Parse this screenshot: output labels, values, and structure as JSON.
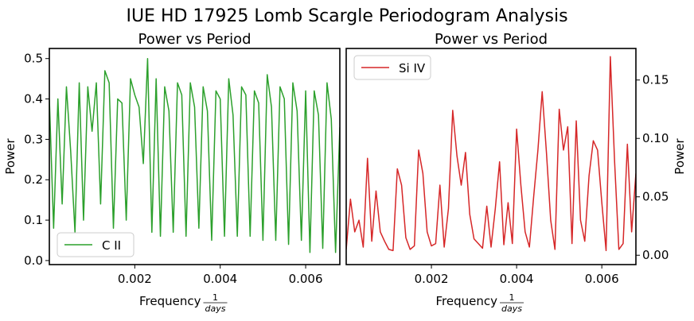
{
  "page": {
    "suptitle": "IUE HD 17925 Lomb Scargle Periodogram Analysis"
  },
  "chart_data": [
    {
      "type": "line",
      "title": "Power vs Period",
      "xlabel": "Frequency",
      "xlabel_fraction": {
        "numerator": "1",
        "denominator": "days"
      },
      "ylabel": "Power",
      "y_axis_side": "left",
      "xlim": [
        0.0,
        0.0068
      ],
      "ylim": [
        -0.01,
        0.525
      ],
      "xticks": [
        0.002,
        0.004,
        0.006
      ],
      "xtick_labels": [
        "0.002",
        "0.004",
        "0.006"
      ],
      "yticks": [
        0.0,
        0.1,
        0.2,
        0.3,
        0.4,
        0.5
      ],
      "ytick_labels": [
        "0.0",
        "0.1",
        "0.2",
        "0.3",
        "0.4",
        "0.5"
      ],
      "legend": {
        "label": "C II",
        "placement": "lower-left"
      },
      "grid": false,
      "series": [
        {
          "name": "C II",
          "color": "#2ca02c",
          "x": [
            0.0,
            0.0001,
            0.0002,
            0.0003,
            0.0004,
            0.0005,
            0.0006,
            0.0007,
            0.0008,
            0.0009,
            0.001,
            0.0011,
            0.0012,
            0.0013,
            0.0014,
            0.0015,
            0.0016,
            0.0017,
            0.0018,
            0.0019,
            0.002,
            0.0021,
            0.0022,
            0.0023,
            0.0024,
            0.0025,
            0.0026,
            0.0027,
            0.0028,
            0.0029,
            0.003,
            0.0031,
            0.0032,
            0.0033,
            0.0034,
            0.0035,
            0.0036,
            0.0037,
            0.0038,
            0.0039,
            0.004,
            0.0041,
            0.0042,
            0.0043,
            0.0044,
            0.0045,
            0.0046,
            0.0047,
            0.0048,
            0.0049,
            0.005,
            0.0051,
            0.0052,
            0.0053,
            0.0054,
            0.0055,
            0.0056,
            0.0057,
            0.0058,
            0.0059,
            0.006,
            0.0061,
            0.0062,
            0.0063,
            0.0064,
            0.0065,
            0.0066,
            0.0067,
            0.0068
          ],
          "y": [
            0.4,
            0.08,
            0.4,
            0.14,
            0.43,
            0.27,
            0.07,
            0.44,
            0.1,
            0.43,
            0.32,
            0.44,
            0.14,
            0.47,
            0.44,
            0.08,
            0.4,
            0.39,
            0.1,
            0.45,
            0.41,
            0.38,
            0.24,
            0.5,
            0.07,
            0.45,
            0.06,
            0.43,
            0.37,
            0.07,
            0.44,
            0.41,
            0.06,
            0.44,
            0.38,
            0.08,
            0.43,
            0.37,
            0.05,
            0.42,
            0.4,
            0.06,
            0.45,
            0.36,
            0.06,
            0.43,
            0.41,
            0.06,
            0.42,
            0.39,
            0.05,
            0.46,
            0.38,
            0.05,
            0.43,
            0.4,
            0.04,
            0.44,
            0.37,
            0.05,
            0.42,
            0.02,
            0.42,
            0.36,
            0.03,
            0.44,
            0.35,
            0.02,
            0.33
          ]
        }
      ]
    },
    {
      "type": "line",
      "title": "Power vs Period",
      "xlabel": "Frequency",
      "xlabel_fraction": {
        "numerator": "1",
        "denominator": "days"
      },
      "ylabel": "Power",
      "y_axis_side": "right",
      "xlim": [
        0.0,
        0.0068
      ],
      "ylim": [
        -0.008,
        0.177
      ],
      "xticks": [
        0.002,
        0.004,
        0.006
      ],
      "xtick_labels": [
        "0.002",
        "0.004",
        "0.006"
      ],
      "yticks": [
        0.0,
        0.05,
        0.1,
        0.15
      ],
      "ytick_labels": [
        "0.00",
        "0.05",
        "0.10",
        "0.15"
      ],
      "legend": {
        "label": "Si IV",
        "placement": "upper-left"
      },
      "grid": false,
      "series": [
        {
          "name": "Si IV",
          "color": "#d62728",
          "x": [
            0.0,
            0.0001,
            0.0002,
            0.0003,
            0.0004,
            0.0005,
            0.0006,
            0.0007,
            0.0008,
            0.0009,
            0.001,
            0.0011,
            0.0012,
            0.0013,
            0.0014,
            0.0015,
            0.0016,
            0.0017,
            0.0018,
            0.0019,
            0.002,
            0.0021,
            0.0022,
            0.0023,
            0.0024,
            0.0025,
            0.0026,
            0.0027,
            0.0028,
            0.0029,
            0.003,
            0.0031,
            0.0032,
            0.0033,
            0.0034,
            0.0035,
            0.0036,
            0.0037,
            0.0038,
            0.0039,
            0.004,
            0.0041,
            0.0042,
            0.0043,
            0.0044,
            0.0045,
            0.0046,
            0.0047,
            0.0048,
            0.0049,
            0.005,
            0.0051,
            0.0052,
            0.0053,
            0.0054,
            0.0055,
            0.0056,
            0.0057,
            0.0058,
            0.0059,
            0.006,
            0.0061,
            0.0062,
            0.0063,
            0.0064,
            0.0065,
            0.0066,
            0.0067,
            0.0068
          ],
          "y": [
            0.005,
            0.048,
            0.02,
            0.03,
            0.007,
            0.083,
            0.012,
            0.055,
            0.02,
            0.012,
            0.005,
            0.004,
            0.074,
            0.06,
            0.015,
            0.005,
            0.008,
            0.09,
            0.07,
            0.02,
            0.008,
            0.01,
            0.06,
            0.007,
            0.04,
            0.124,
            0.085,
            0.06,
            0.088,
            0.035,
            0.014,
            0.01,
            0.006,
            0.042,
            0.007,
            0.04,
            0.08,
            0.009,
            0.045,
            0.01,
            0.108,
            0.06,
            0.02,
            0.007,
            0.05,
            0.09,
            0.14,
            0.088,
            0.03,
            0.005,
            0.125,
            0.09,
            0.11,
            0.01,
            0.115,
            0.03,
            0.012,
            0.068,
            0.098,
            0.09,
            0.045,
            0.004,
            0.17,
            0.08,
            0.005,
            0.01,
            0.095,
            0.02,
            0.07
          ]
        }
      ]
    }
  ]
}
